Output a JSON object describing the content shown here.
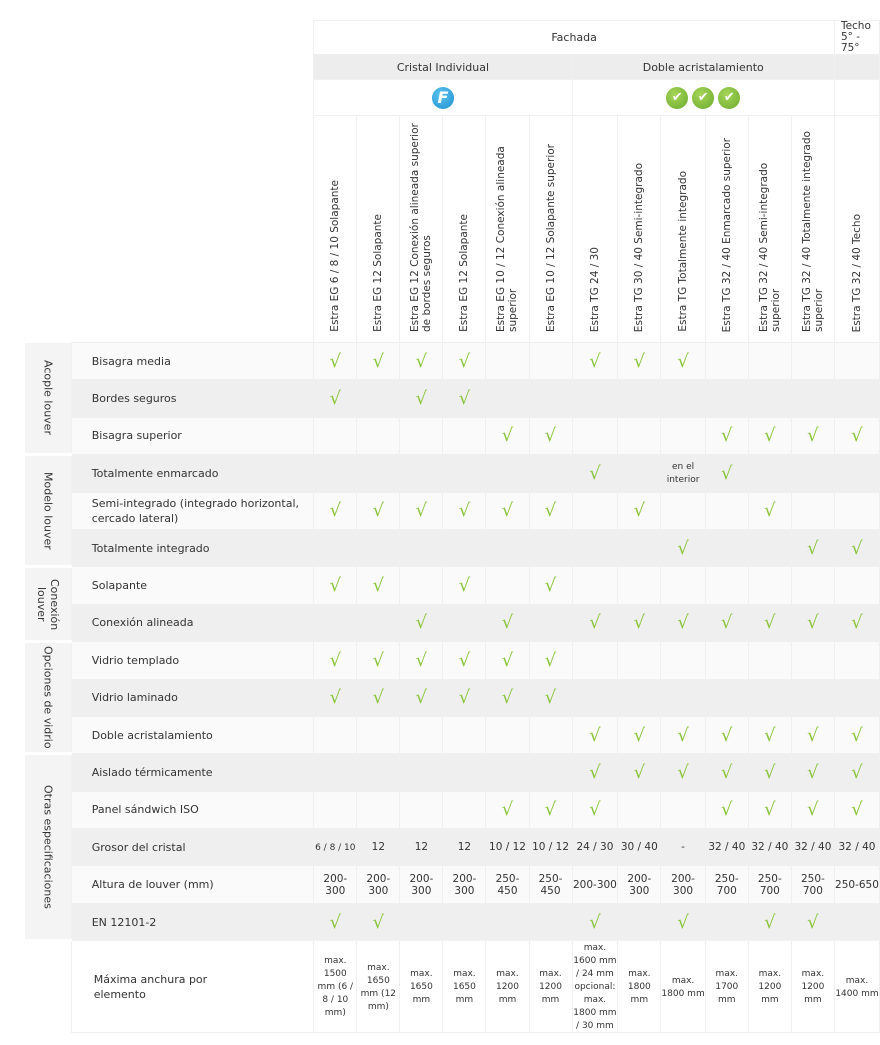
{
  "header": {
    "fachada": "Fachada",
    "techo": "Techo 5° - 75°",
    "cristal_individual": "Cristal Individual",
    "doble_acristalamiento": "Doble acristalamiento",
    "cristal_icon": "f-logo-icon",
    "doble_icons": [
      "green-check-badge-icon",
      "green-check-badge-icon",
      "green-check-badge-icon"
    ]
  },
  "products": [
    "Estra EG 6 / 8 / 10 Solapante",
    "Estra EG 12 Solapante",
    "Estra EG 12 Conexión alineada superior de bordes seguros",
    "Estra EG 12 Solapante",
    "Estra EG 10 / 12 Conexión alineada superior",
    "Estra EG 10 / 12 Solapante superior",
    "Estra TG 24 / 30",
    "Estra TG 30 / 40 Semi-integrado",
    "Estra TG Totalmente integrado",
    "Estra TG 32 / 40 Enmarcado superior",
    "Estra TG 32 / 40 Semi-integrado superior",
    "Estra TG 32 / 40 Totalmente integrado superior",
    "Estra TG 32 / 40 Techo"
  ],
  "check_symbol": "√",
  "accent_color": "#8cc63f",
  "groups": [
    {
      "label": "Acople louver",
      "rows": [
        {
          "label": "Bisagra media",
          "cells": [
            "√",
            "√",
            "√",
            "√",
            "",
            "",
            "√",
            "√",
            "√",
            "",
            "",
            "",
            ""
          ]
        },
        {
          "label": "Bordes seguros",
          "cells": [
            "√",
            "",
            "√",
            "√",
            "",
            "",
            "",
            "",
            "",
            "",
            "",
            "",
            ""
          ]
        },
        {
          "label": "Bisagra superior",
          "cells": [
            "",
            "",
            "",
            "",
            "√",
            "√",
            "",
            "",
            "",
            "√",
            "√",
            "√",
            "√"
          ]
        }
      ]
    },
    {
      "label": "Modelo louver",
      "rows": [
        {
          "label": "Totalmente enmarcado",
          "cells": [
            "",
            "",
            "",
            "",
            "",
            "",
            "√",
            "",
            "en el interior",
            "√",
            "",
            "",
            ""
          ]
        },
        {
          "label": "Semi-integrado (integrado horizontal, cercado lateral)",
          "cells": [
            "√",
            "√",
            "√",
            "√",
            "√",
            "√",
            "",
            "√",
            "",
            "",
            "√",
            "",
            ""
          ]
        },
        {
          "label": "Totalmente integrado",
          "cells": [
            "",
            "",
            "",
            "",
            "",
            "",
            "",
            "",
            "√",
            "",
            "",
            "√",
            "√"
          ]
        }
      ]
    },
    {
      "label": "Conexión louver",
      "rows": [
        {
          "label": "Solapante",
          "cells": [
            "√",
            "√",
            "",
            "√",
            "",
            "√",
            "",
            "",
            "",
            "",
            "",
            "",
            ""
          ]
        },
        {
          "label": "Conexión alineada",
          "cells": [
            "",
            "",
            "√",
            "",
            "√",
            "",
            "√",
            "√",
            "√",
            "√",
            "√",
            "√",
            "√"
          ]
        }
      ]
    },
    {
      "label": "Opciones de vidrio",
      "rows": [
        {
          "label": "Vidrio templado",
          "cells": [
            "√",
            "√",
            "√",
            "√",
            "√",
            "√",
            "",
            "",
            "",
            "",
            "",
            "",
            ""
          ]
        },
        {
          "label": "Vidrio laminado",
          "cells": [
            "√",
            "√",
            "√",
            "√",
            "√",
            "√",
            "",
            "",
            "",
            "",
            "",
            "",
            ""
          ]
        },
        {
          "label": "Doble acristalamiento",
          "cells": [
            "",
            "",
            "",
            "",
            "",
            "",
            "√",
            "√",
            "√",
            "√",
            "√",
            "√",
            "√"
          ]
        }
      ]
    },
    {
      "label": "Otras especificaciones",
      "rows": [
        {
          "label": "Aislado térmicamente",
          "cells": [
            "",
            "",
            "",
            "",
            "",
            "",
            "√",
            "√",
            "√",
            "√",
            "√",
            "√",
            "√"
          ]
        },
        {
          "label": "Panel sándwich ISO",
          "cells": [
            "",
            "",
            "",
            "",
            "√",
            "√",
            "√",
            "",
            "",
            "√",
            "√",
            "√",
            "√"
          ]
        },
        {
          "label": "Grosor del cristal",
          "cells": [
            "6 / 8 / 10",
            "12",
            "12",
            "12",
            "10 / 12",
            "10 / 12",
            "24 / 30",
            "30 / 40",
            "-",
            "32 / 40",
            "32 / 40",
            "32 / 40",
            "32 / 40"
          ]
        },
        {
          "label": "Altura de louver (mm)",
          "cells": [
            "200-300",
            "200-300",
            "200-300",
            "200-300",
            "250-450",
            "250-450",
            "200-300",
            "200-300",
            "200-300",
            "250-700",
            "250-700",
            "250-700",
            "250-650"
          ]
        },
        {
          "label": "EN 12101-2",
          "cells": [
            "√",
            "√",
            "",
            "",
            "",
            "",
            "√",
            "",
            "√",
            "",
            "√",
            "√",
            ""
          ]
        }
      ]
    }
  ],
  "last_row": {
    "label": "Máxima anchura por elemento",
    "cells": [
      "max. 1500 mm (6 / 8 / 10 mm)",
      "max. 1650 mm (12 mm)",
      "max. 1650 mm",
      "max. 1650 mm",
      "max. 1200 mm",
      "max. 1200 mm",
      "max. 1600 mm / 24 mm opcional: max. 1800 mm / 30 mm",
      "max. 1800 mm",
      "max. 1800 mm",
      "max. 1700 mm",
      "max. 1200 mm",
      "max. 1200 mm",
      "max. 1400 mm"
    ]
  }
}
